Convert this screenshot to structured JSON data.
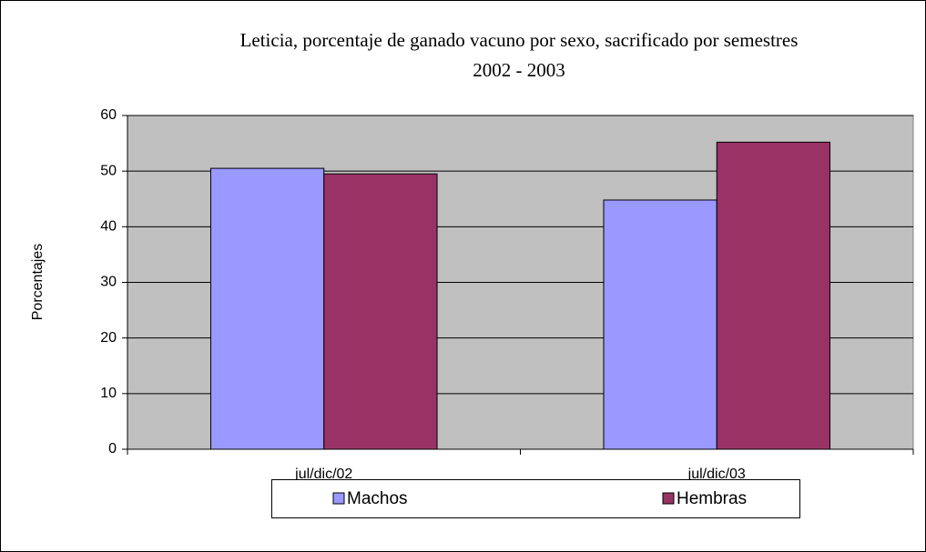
{
  "chart_data": {
    "type": "bar",
    "title": "Leticia, porcentaje de ganado vacuno por sexo, sacrificado por semestres",
    "subtitle": "2002 - 2003",
    "y_label": "Porcentajes",
    "categories": [
      "jul/dic/02",
      "jul/dic/03"
    ],
    "series": [
      {
        "name": "Machos",
        "color": "#9999ff",
        "values": [
          50.5,
          44.8
        ]
      },
      {
        "name": "Hembras",
        "color": "#993366",
        "values": [
          49.5,
          55.2
        ]
      }
    ],
    "ylim": [
      0,
      60
    ],
    "yticks": [
      0,
      10,
      20,
      30,
      40,
      50,
      60
    ],
    "grid": true,
    "plot_background": "#c0c0c0",
    "legend": "bottom"
  }
}
